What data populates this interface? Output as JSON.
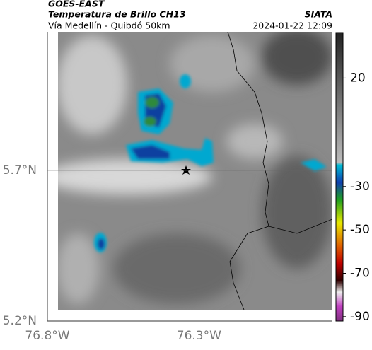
{
  "header": {
    "title": "GOES-EAST",
    "subtitle": "Temperatura de Brillo CH13",
    "location": "Vía Medellín - Quibdó 50km",
    "source": "SIATA",
    "timestamp": "2024-01-22 12:09"
  },
  "map": {
    "xlim": [
      -76.8,
      -75.86
    ],
    "ylim": [
      5.2,
      6.16
    ],
    "xticks": [
      {
        "value": -76.8,
        "label": "76.8°W"
      },
      {
        "value": -76.3,
        "label": "76.3°W"
      }
    ],
    "yticks": [
      {
        "value": 5.7,
        "label": "5.7°N"
      },
      {
        "value": 5.2,
        "label": "5.2°N"
      }
    ]
  },
  "colorbar": {
    "lim": [
      -92,
      41
    ],
    "ticks": [
      20,
      -30,
      -50,
      -70,
      -90
    ]
  }
}
